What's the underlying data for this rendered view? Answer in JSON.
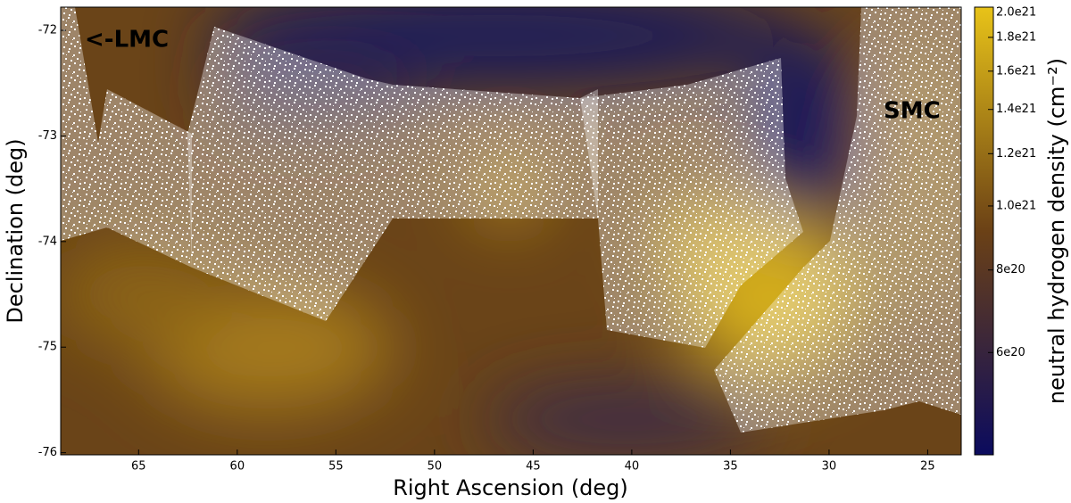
{
  "chart_data": {
    "type": "heatmap",
    "xlabel": "Right Ascension (deg)",
    "ylabel": "Declination (deg)",
    "xlim": [
      68.95,
      23.3
    ],
    "xticks": [
      65,
      60,
      55,
      50,
      45,
      40,
      35,
      30,
      25
    ],
    "ylim": [
      -76.02,
      -71.78
    ],
    "yticks": [
      -72,
      -73,
      -74,
      -75,
      -76
    ],
    "colorbar": {
      "label": "neutral hydrogen density (cm⁻²)",
      "scale": "log",
      "lim": [
        4.2e+20,
        2e+21
      ],
      "colormap": [
        "#0b0b5e",
        "#6b4116",
        "#e8c318"
      ],
      "ticks": [
        {
          "value": 2e+21,
          "label": "2.0e21"
        },
        {
          "value": 1.8e+21,
          "label": "1.8e21"
        },
        {
          "value": 1.6e+21,
          "label": "1.6e21"
        },
        {
          "value": 1.4e+21,
          "label": "1.4e21"
        },
        {
          "value": 1.2e+21,
          "label": "1.2e21"
        },
        {
          "value": 1e+21,
          "label": "1.0e21"
        },
        {
          "value": 8e+20,
          "label": "8e20"
        },
        {
          "value": 6e+20,
          "label": "6e20"
        }
      ]
    },
    "annotations": [
      {
        "text": "<-LMC",
        "color": "#ffffff"
      },
      {
        "text": "SMC",
        "color": "#111111"
      }
    ]
  }
}
